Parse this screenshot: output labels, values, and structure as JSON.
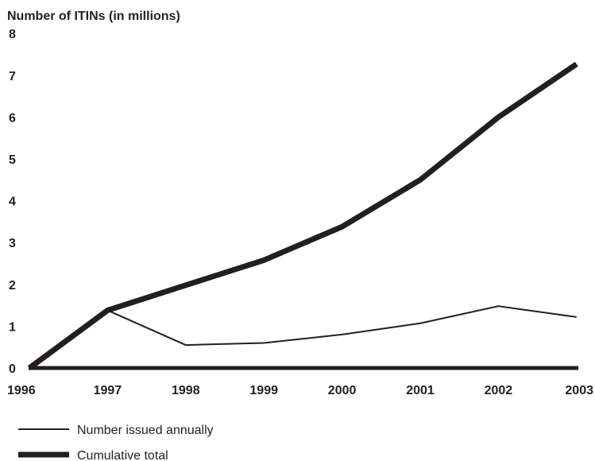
{
  "chart_data": {
    "type": "line",
    "ylabel": "Number of ITINs (in millions)",
    "xlabel": "",
    "title": "",
    "x": [
      "1996",
      "1997",
      "1998",
      "1999",
      "2000",
      "2001",
      "2002",
      "2003"
    ],
    "y_ticks": [
      "0",
      "1",
      "2",
      "3",
      "4",
      "5",
      "6",
      "7",
      "8"
    ],
    "ylim": [
      0,
      8
    ],
    "grid": false,
    "legend_position": "bottom-left",
    "series": [
      {
        "name": "Number issued annually",
        "values": [
          0,
          1.38,
          0.55,
          0.6,
          0.8,
          1.07,
          1.48,
          1.22
        ],
        "color": "#231f20",
        "style": "thin"
      },
      {
        "name": "Cumulative total",
        "values": [
          0,
          1.38,
          1.98,
          2.58,
          3.38,
          4.5,
          6.0,
          7.27
        ],
        "color": "#231f20",
        "style": "thick"
      }
    ]
  }
}
